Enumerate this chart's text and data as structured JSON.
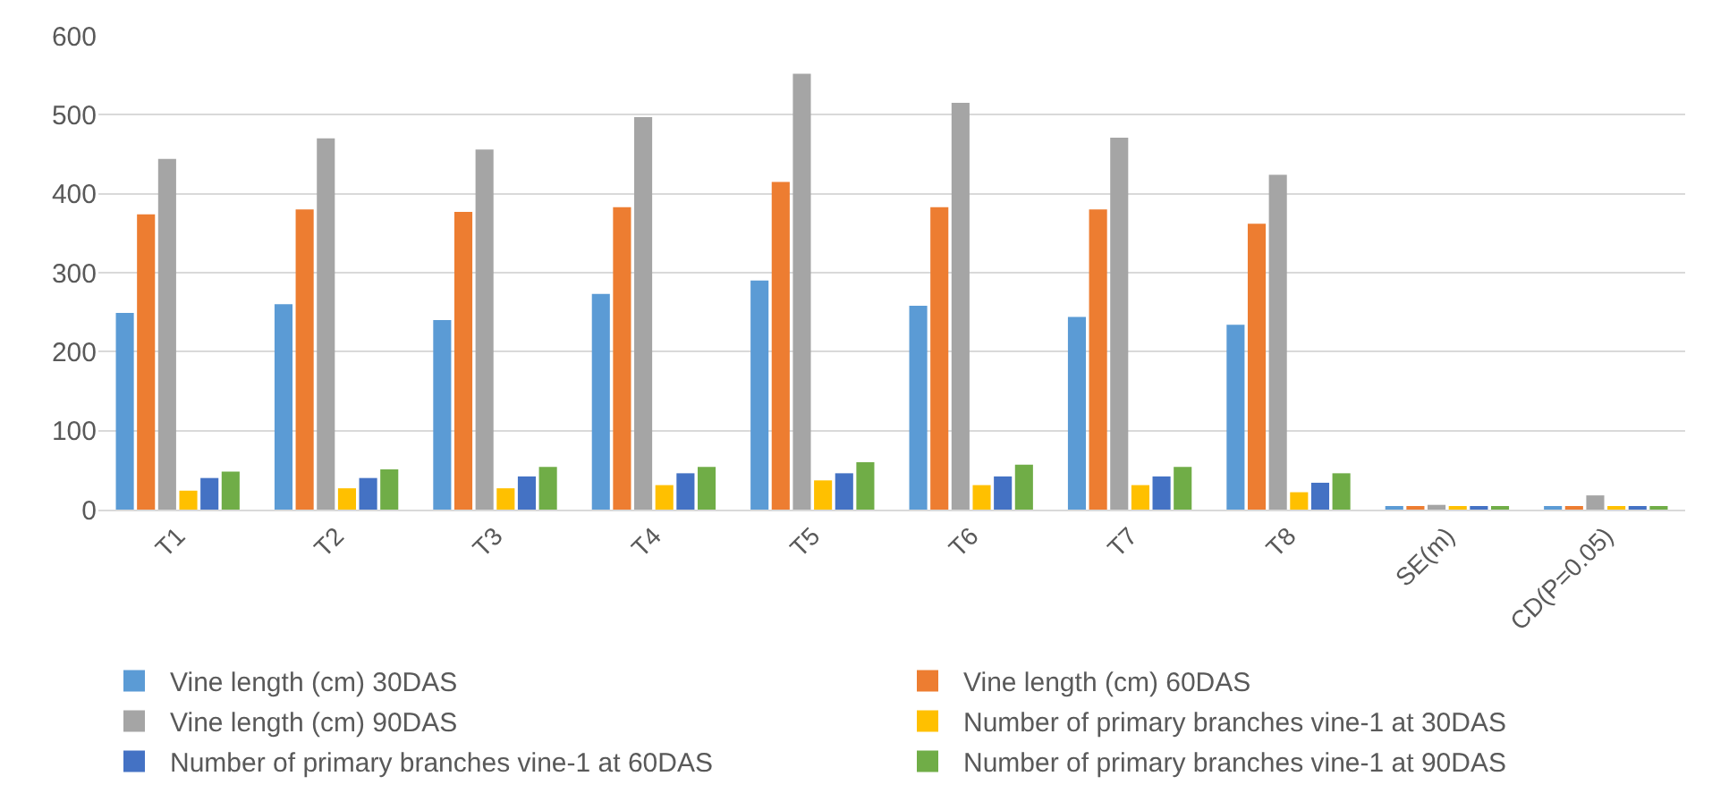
{
  "chart_data": {
    "type": "bar",
    "categories": [
      "T1",
      "T2",
      "T3",
      "T4",
      "T5",
      "T6",
      "T7",
      "T8",
      "SE(m)",
      "CD(P=0.05)"
    ],
    "series": [
      {
        "name": "Vine length (cm) 30DAS",
        "color": "#5b9bd5",
        "values": [
          249,
          260,
          240,
          273,
          290,
          258,
          244,
          234,
          3,
          3
        ]
      },
      {
        "name": "Vine length (cm) 60DAS",
        "color": "#ed7d31",
        "values": [
          374,
          380,
          377,
          383,
          415,
          383,
          380,
          362,
          3,
          3
        ]
      },
      {
        "name": "Vine length (cm) 90DAS",
        "color": "#a5a5a5",
        "values": [
          444,
          470,
          456,
          497,
          552,
          515,
          471,
          424,
          6,
          18
        ]
      },
      {
        "name": "Number of primary branches vine-1 at 30DAS",
        "color": "#ffc000",
        "values": [
          24,
          27,
          27,
          31,
          37,
          31,
          31,
          22,
          3,
          3
        ]
      },
      {
        "name": "Number of primary branches vine-1 at 60DAS",
        "color": "#4472c4",
        "values": [
          40,
          40,
          42,
          46,
          46,
          42,
          42,
          34,
          3,
          3
        ]
      },
      {
        "name": "Number of primary branches vine-1 at 90DAS",
        "color": "#70ad47",
        "values": [
          48,
          51,
          54,
          54,
          60,
          57,
          54,
          46,
          3,
          3
        ]
      }
    ],
    "ylim": [
      0,
      600
    ],
    "yticks": [
      0,
      100,
      200,
      300,
      400,
      500,
      600
    ],
    "grid": "y",
    "legend": "bottom"
  }
}
